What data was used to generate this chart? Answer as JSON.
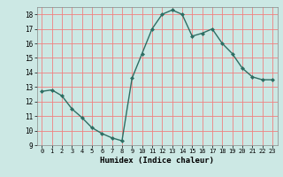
{
  "x": [
    0,
    1,
    2,
    3,
    4,
    5,
    6,
    7,
    8,
    9,
    10,
    11,
    12,
    13,
    14,
    15,
    16,
    17,
    18,
    19,
    20,
    21,
    22,
    23
  ],
  "y": [
    12.7,
    12.8,
    12.4,
    11.5,
    10.9,
    10.2,
    9.8,
    9.5,
    9.3,
    13.6,
    15.3,
    17.0,
    18.0,
    18.3,
    18.0,
    16.5,
    16.7,
    17.0,
    16.0,
    15.3,
    14.3,
    13.7,
    13.5,
    13.5
  ],
  "xlabel": "Humidex (Indice chaleur)",
  "ylim": [
    9,
    18.5
  ],
  "xlim": [
    -0.5,
    23.5
  ],
  "yticks": [
    9,
    10,
    11,
    12,
    13,
    14,
    15,
    16,
    17,
    18
  ],
  "xticks": [
    0,
    1,
    2,
    3,
    4,
    5,
    6,
    7,
    8,
    9,
    10,
    11,
    12,
    13,
    14,
    15,
    16,
    17,
    18,
    19,
    20,
    21,
    22,
    23
  ],
  "line_color": "#2d6e63",
  "marker_color": "#2d6e63",
  "bg_color": "#cce8e4",
  "grid_color": "#f08080",
  "spine_color": "#888888"
}
